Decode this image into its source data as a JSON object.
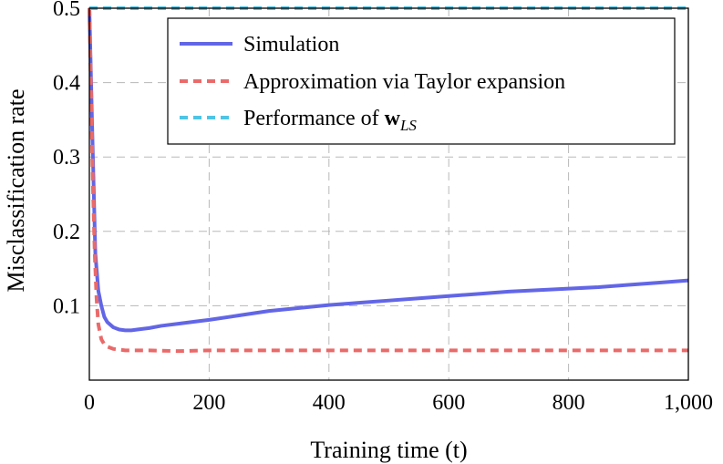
{
  "chart_data": {
    "type": "line",
    "title": "",
    "xlabel": "Training time (t)",
    "ylabel": "Misclassification rate",
    "xlim": [
      0,
      1000
    ],
    "ylim": [
      0,
      0.5
    ],
    "xticks": [
      0,
      200,
      400,
      600,
      800,
      1000
    ],
    "xtick_labels": [
      "0",
      "200",
      "400",
      "600",
      "800",
      "1,000"
    ],
    "yticks": [
      0.1,
      0.2,
      0.3,
      0.4,
      0.5
    ],
    "ytick_labels": [
      "0.1",
      "0.2",
      "0.3",
      "0.4",
      "0.5"
    ],
    "grid": true,
    "legend_position": "top-right",
    "series": [
      {
        "name": "Simulation",
        "style": "solid",
        "color": "#6266e6",
        "x": [
          0,
          5,
          10,
          15,
          20,
          25,
          30,
          40,
          50,
          60,
          70,
          80,
          100,
          120,
          150,
          180,
          200,
          250,
          300,
          350,
          400,
          450,
          500,
          550,
          600,
          650,
          700,
          750,
          800,
          850,
          900,
          950,
          1000
        ],
        "y": [
          0.5,
          0.33,
          0.17,
          0.12,
          0.1,
          0.085,
          0.078,
          0.071,
          0.068,
          0.067,
          0.067,
          0.068,
          0.07,
          0.073,
          0.076,
          0.079,
          0.081,
          0.087,
          0.093,
          0.097,
          0.101,
          0.104,
          0.107,
          0.11,
          0.113,
          0.116,
          0.119,
          0.121,
          0.123,
          0.125,
          0.128,
          0.131,
          0.134
        ]
      },
      {
        "name": "Approximation via Taylor expansion",
        "style": "dashed",
        "color": "#ea6a6a",
        "x": [
          0,
          3,
          6,
          9,
          12,
          15,
          20,
          25,
          30,
          40,
          50,
          60,
          80,
          100,
          150,
          200,
          300,
          400,
          500,
          600,
          700,
          800,
          900,
          1000
        ],
        "y": [
          0.5,
          0.38,
          0.26,
          0.17,
          0.11,
          0.075,
          0.055,
          0.048,
          0.045,
          0.042,
          0.041,
          0.04,
          0.04,
          0.04,
          0.039,
          0.04,
          0.04,
          0.04,
          0.04,
          0.04,
          0.04,
          0.04,
          0.04,
          0.04
        ]
      },
      {
        "name": "Performance of w_LS",
        "style": "dashed",
        "color": "#4ec4e6",
        "x": [
          0,
          1000
        ],
        "y": [
          0.5,
          0.5
        ]
      }
    ]
  },
  "legend": {
    "entries": [
      {
        "label": "Simulation",
        "color": "#6266e6",
        "style": "solid"
      },
      {
        "label": "Approximation via Taylor expansion",
        "color": "#ea6a6a",
        "style": "dashed"
      },
      {
        "label_prefix": "Performance of ",
        "label_bold": "w",
        "label_sub": "LS",
        "color": "#4ec4e6",
        "style": "dashed"
      }
    ]
  }
}
